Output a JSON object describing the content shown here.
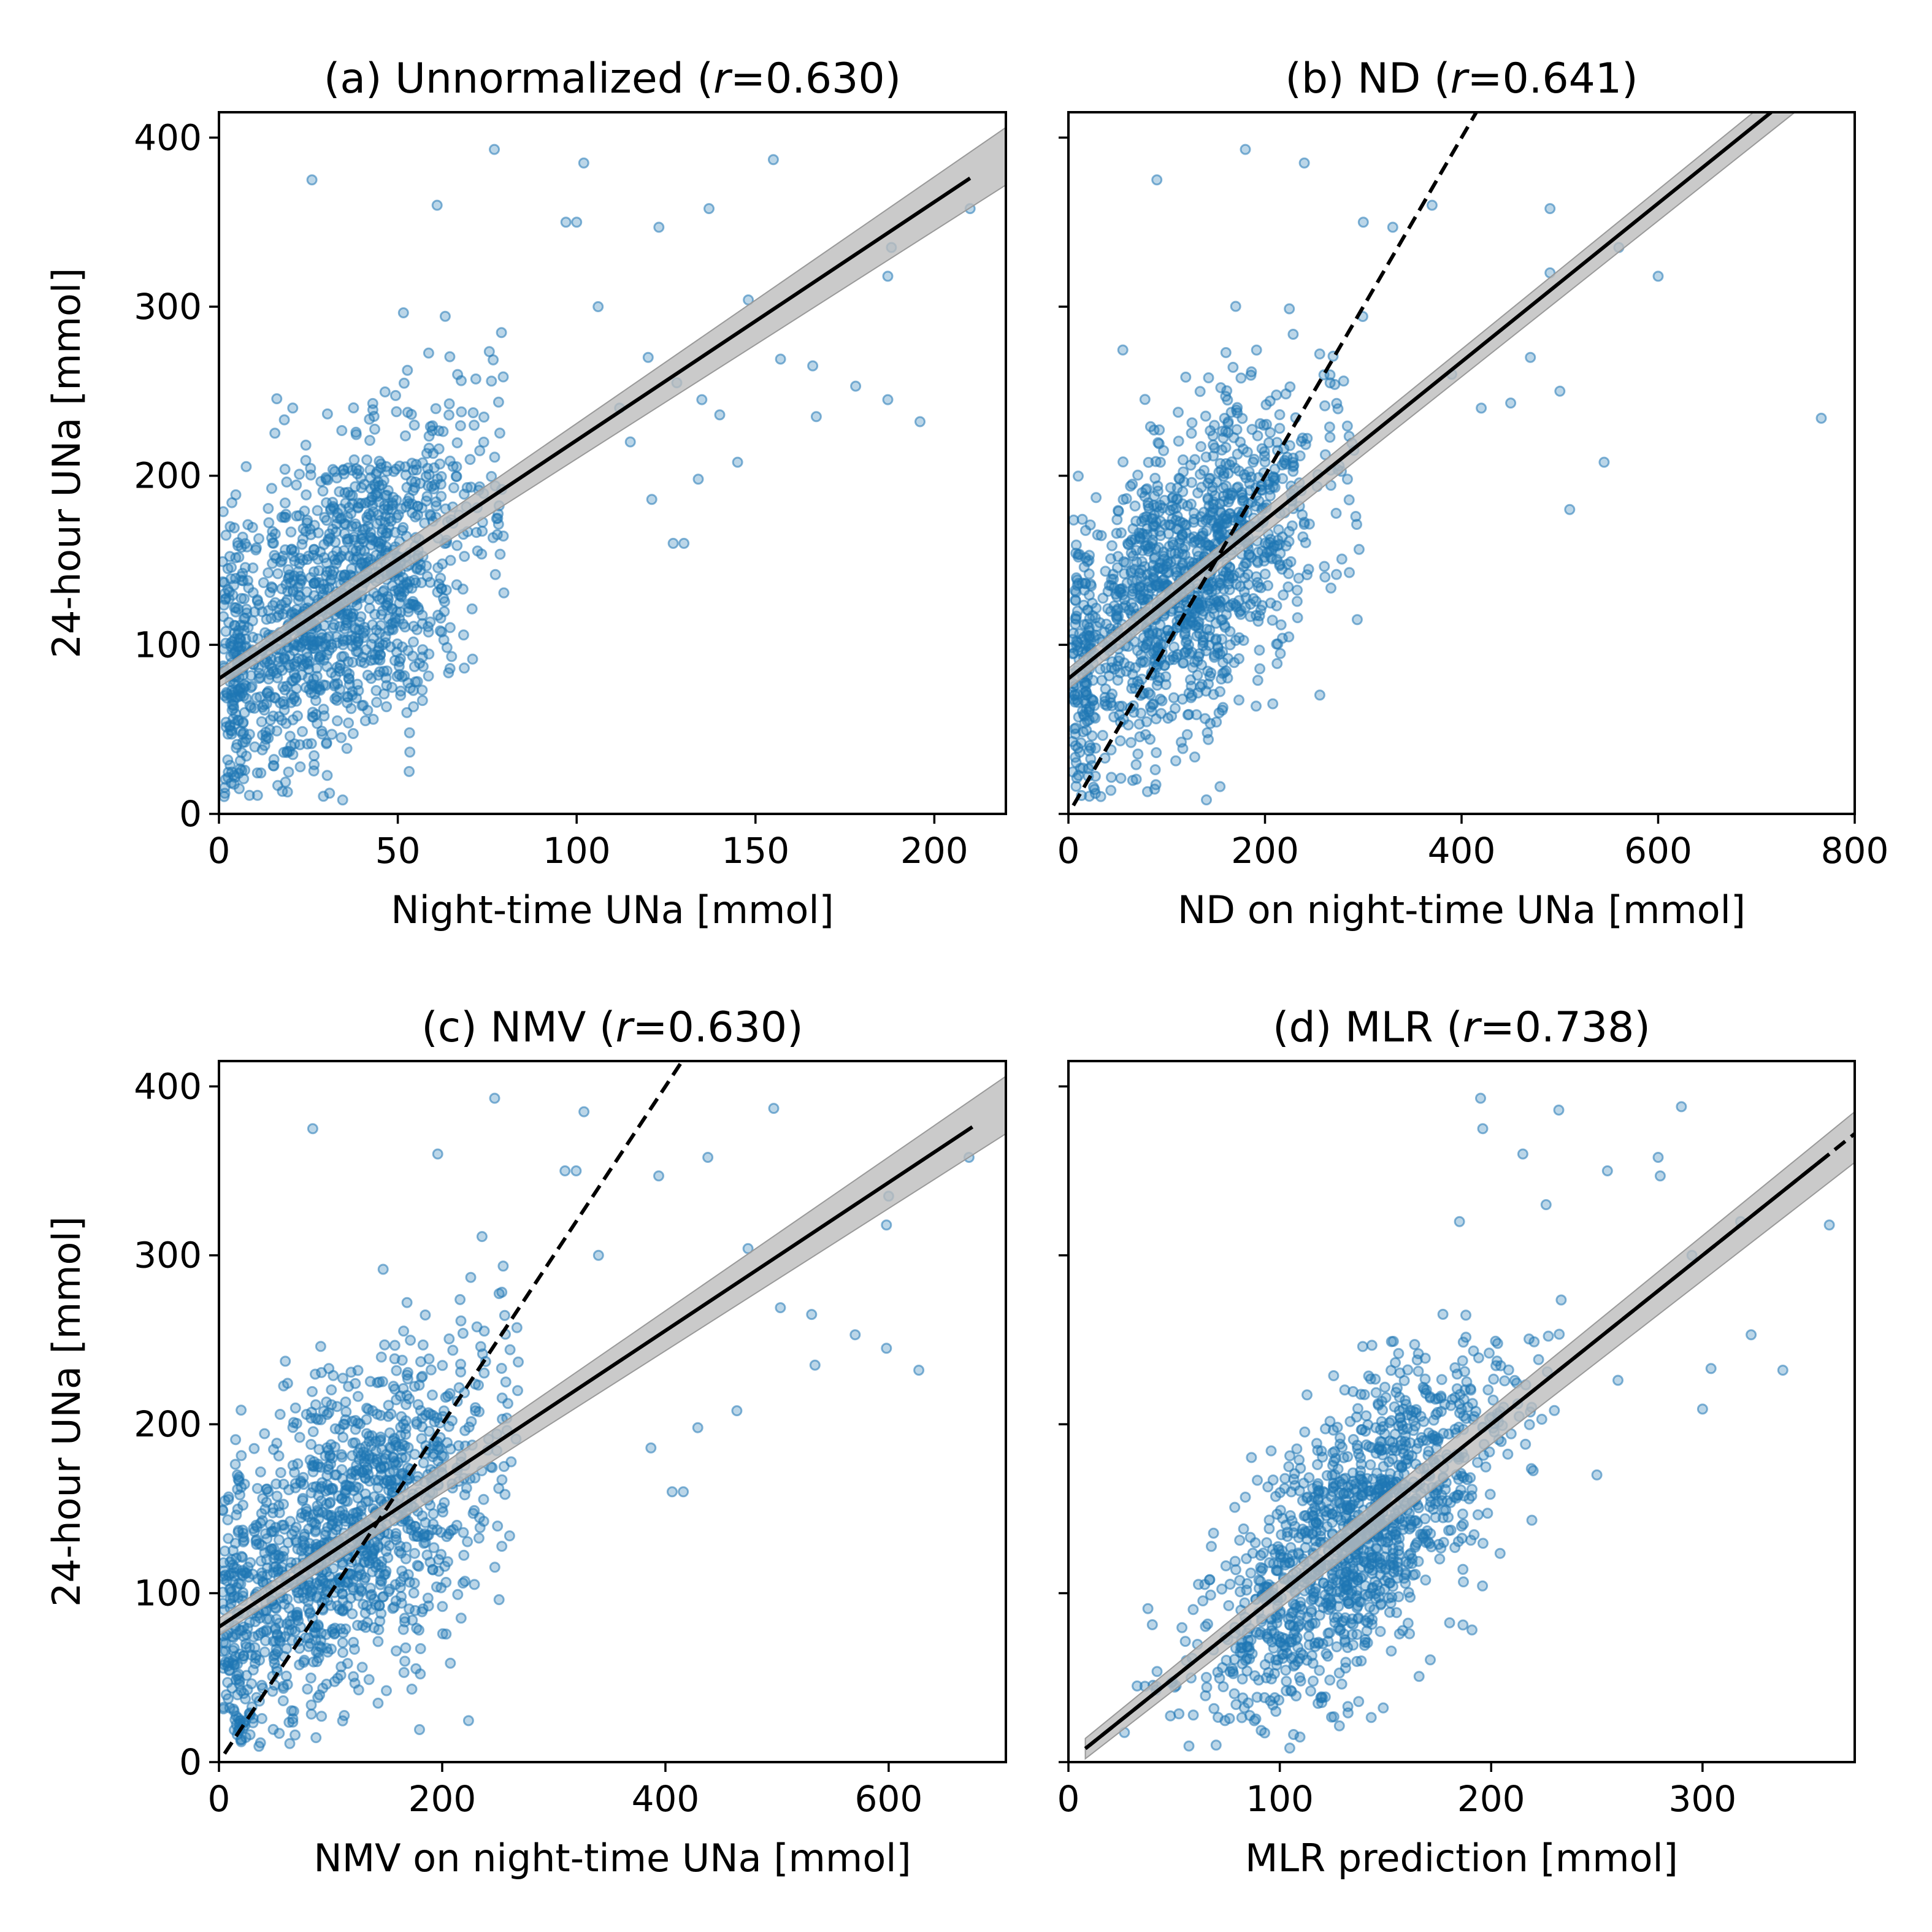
{
  "colors": {
    "points": "#1f77b4",
    "band": "#bdbdbd",
    "line": "#000000"
  },
  "chart_data": [
    {
      "type": "scatter",
      "title": "(a) Unnormalized (r=0.630)",
      "title_parts": [
        "(a) Unnormalized (",
        "r",
        "=0.630)"
      ],
      "xlabel": "Night-time UNa [mmol]",
      "ylabel": "24-hour UNa [mmol]",
      "xlim": [
        0,
        220
      ],
      "ylim": [
        0,
        415
      ],
      "xticks": [
        0,
        50,
        100,
        150,
        200
      ],
      "yticks": [
        0,
        100,
        200,
        300,
        400
      ],
      "fit_line": {
        "x": [
          0,
          210
        ],
        "y": [
          80,
          376
        ]
      },
      "ci_band": {
        "x": [
          0,
          220
        ],
        "lower_end": [
          75,
          372
        ],
        "upper_end": [
          85,
          406
        ]
      },
      "identity_line": null,
      "points": {
        "n": 1300,
        "x_center": 33,
        "x_spread": 22,
        "x_min": 1,
        "x_max": 80,
        "slope": 1.4,
        "intercept": 80,
        "noise": 45,
        "outliers": [
          [
            26,
            375
          ],
          [
            61,
            360
          ],
          [
            77,
            393
          ],
          [
            102,
            385
          ],
          [
            97,
            350
          ],
          [
            100,
            350
          ],
          [
            123,
            347
          ],
          [
            137,
            358
          ],
          [
            155,
            387
          ],
          [
            188,
            335
          ],
          [
            187,
            318
          ],
          [
            210,
            358
          ],
          [
            148,
            304
          ],
          [
            157,
            269
          ],
          [
            166,
            265
          ],
          [
            178,
            253
          ],
          [
            187,
            245
          ],
          [
            196,
            232
          ],
          [
            167,
            235
          ],
          [
            145,
            208
          ],
          [
            134,
            198
          ],
          [
            130,
            160
          ],
          [
            127,
            160
          ],
          [
            121,
            186
          ],
          [
            106,
            300
          ],
          [
            120,
            270
          ],
          [
            128,
            255
          ],
          [
            135,
            245
          ],
          [
            140,
            236
          ],
          [
            115,
            220
          ],
          [
            112,
            240
          ]
        ]
      }
    },
    {
      "type": "scatter",
      "title": "(b) ND (r=0.641)",
      "title_parts": [
        "(b) ND (",
        "r",
        "=0.641)"
      ],
      "xlabel": "ND on night-time UNa [mmol]",
      "ylabel": "",
      "xlim": [
        0,
        800
      ],
      "ylim": [
        0,
        415
      ],
      "xticks": [
        0,
        200,
        400,
        600,
        800
      ],
      "yticks": [
        0,
        100,
        200,
        300,
        400
      ],
      "fit_line": {
        "x": [
          0,
          715
        ],
        "y": [
          80,
          415
        ]
      },
      "ci_band": {
        "x": [
          0,
          750
        ],
        "lower_end": [
          74,
          420
        ],
        "upper_end": [
          86,
          440
        ]
      },
      "identity_line": {
        "x": [
          5,
          415
        ],
        "y": [
          5,
          415
        ]
      },
      "points": {
        "n": 1300,
        "x_center": 118,
        "x_spread": 70,
        "x_min": 3,
        "x_max": 300,
        "slope": 0.46,
        "intercept": 80,
        "noise": 45,
        "outliers": [
          [
            90,
            375
          ],
          [
            180,
            393
          ],
          [
            240,
            385
          ],
          [
            300,
            350
          ],
          [
            330,
            347
          ],
          [
            370,
            360
          ],
          [
            490,
            358
          ],
          [
            560,
            335
          ],
          [
            600,
            318
          ],
          [
            766,
            234
          ],
          [
            545,
            208
          ],
          [
            510,
            180
          ],
          [
            470,
            270
          ],
          [
            450,
            243
          ],
          [
            420,
            240
          ],
          [
            390,
            260
          ],
          [
            500,
            250
          ],
          [
            490,
            320
          ]
        ]
      }
    },
    {
      "type": "scatter",
      "title": "(c) NMV (r=0.630)",
      "title_parts": [
        "(c) NMV (",
        "r",
        "=0.630)"
      ],
      "xlabel": "NMV on night-time UNa [mmol]",
      "ylabel": "24-hour UNa [mmol]",
      "xlim": [
        0,
        705
      ],
      "ylim": [
        0,
        415
      ],
      "xticks": [
        0,
        200,
        400,
        600
      ],
      "yticks": [
        0,
        100,
        200,
        300,
        400
      ],
      "fit_line": {
        "x": [
          0,
          675
        ],
        "y": [
          80,
          376
        ]
      },
      "ci_band": {
        "x": [
          0,
          705
        ],
        "lower_end": [
          75,
          372
        ],
        "upper_end": [
          85,
          406
        ]
      },
      "identity_line": {
        "x": [
          5,
          415
        ],
        "y": [
          5,
          415
        ]
      },
      "points": {
        "n": 1300,
        "x_center": 108,
        "x_spread": 70,
        "x_min": 3,
        "x_max": 270,
        "slope": 0.44,
        "intercept": 80,
        "noise": 45,
        "outliers": [
          [
            84,
            375
          ],
          [
            196,
            360
          ],
          [
            247,
            393
          ],
          [
            327,
            385
          ],
          [
            310,
            350
          ],
          [
            320,
            350
          ],
          [
            394,
            347
          ],
          [
            438,
            358
          ],
          [
            497,
            387
          ],
          [
            600,
            335
          ],
          [
            598,
            318
          ],
          [
            672,
            358
          ],
          [
            474,
            304
          ],
          [
            503,
            269
          ],
          [
            531,
            265
          ],
          [
            570,
            253
          ],
          [
            598,
            245
          ],
          [
            627,
            232
          ],
          [
            534,
            235
          ],
          [
            464,
            208
          ],
          [
            429,
            198
          ],
          [
            416,
            160
          ],
          [
            406,
            160
          ],
          [
            387,
            186
          ],
          [
            340,
            300
          ]
        ]
      }
    },
    {
      "type": "scatter",
      "title": "(d) MLR (r=0.738)",
      "title_parts": [
        "(d) MLR (",
        "r",
        "=0.738)"
      ],
      "xlabel": "MLR prediction [mmol]",
      "ylabel": "",
      "xlim": [
        0,
        372
      ],
      "ylim": [
        0,
        415
      ],
      "xticks": [
        0,
        100,
        200,
        300
      ],
      "yticks": [
        0,
        100,
        200,
        300,
        400
      ],
      "fit_line": {
        "x": [
          8,
          360
        ],
        "y": [
          8,
          360
        ]
      },
      "ci_band": {
        "x": [
          8,
          372
        ],
        "lower_end": [
          2,
          355
        ],
        "upper_end": [
          14,
          385
        ]
      },
      "identity_line": {
        "x": [
          8,
          372
        ],
        "y": [
          8,
          372
        ]
      },
      "points": {
        "n": 1300,
        "x_center": 135,
        "x_spread": 35,
        "x_min": 25,
        "x_max": 330,
        "slope": 1.0,
        "intercept": 0,
        "noise": 38,
        "outliers": [
          [
            195,
            393
          ],
          [
            232,
            386
          ],
          [
            290,
            388
          ],
          [
            215,
            360
          ],
          [
            279,
            358
          ],
          [
            280,
            347
          ],
          [
            255,
            350
          ],
          [
            226,
            330
          ],
          [
            295,
            300
          ],
          [
            318,
            320
          ],
          [
            360,
            318
          ],
          [
            338,
            232
          ],
          [
            323,
            253
          ],
          [
            304,
            233
          ],
          [
            300,
            209
          ],
          [
            260,
            226
          ],
          [
            250,
            170
          ],
          [
            196,
            375
          ],
          [
            185,
            320
          ]
        ]
      }
    }
  ]
}
